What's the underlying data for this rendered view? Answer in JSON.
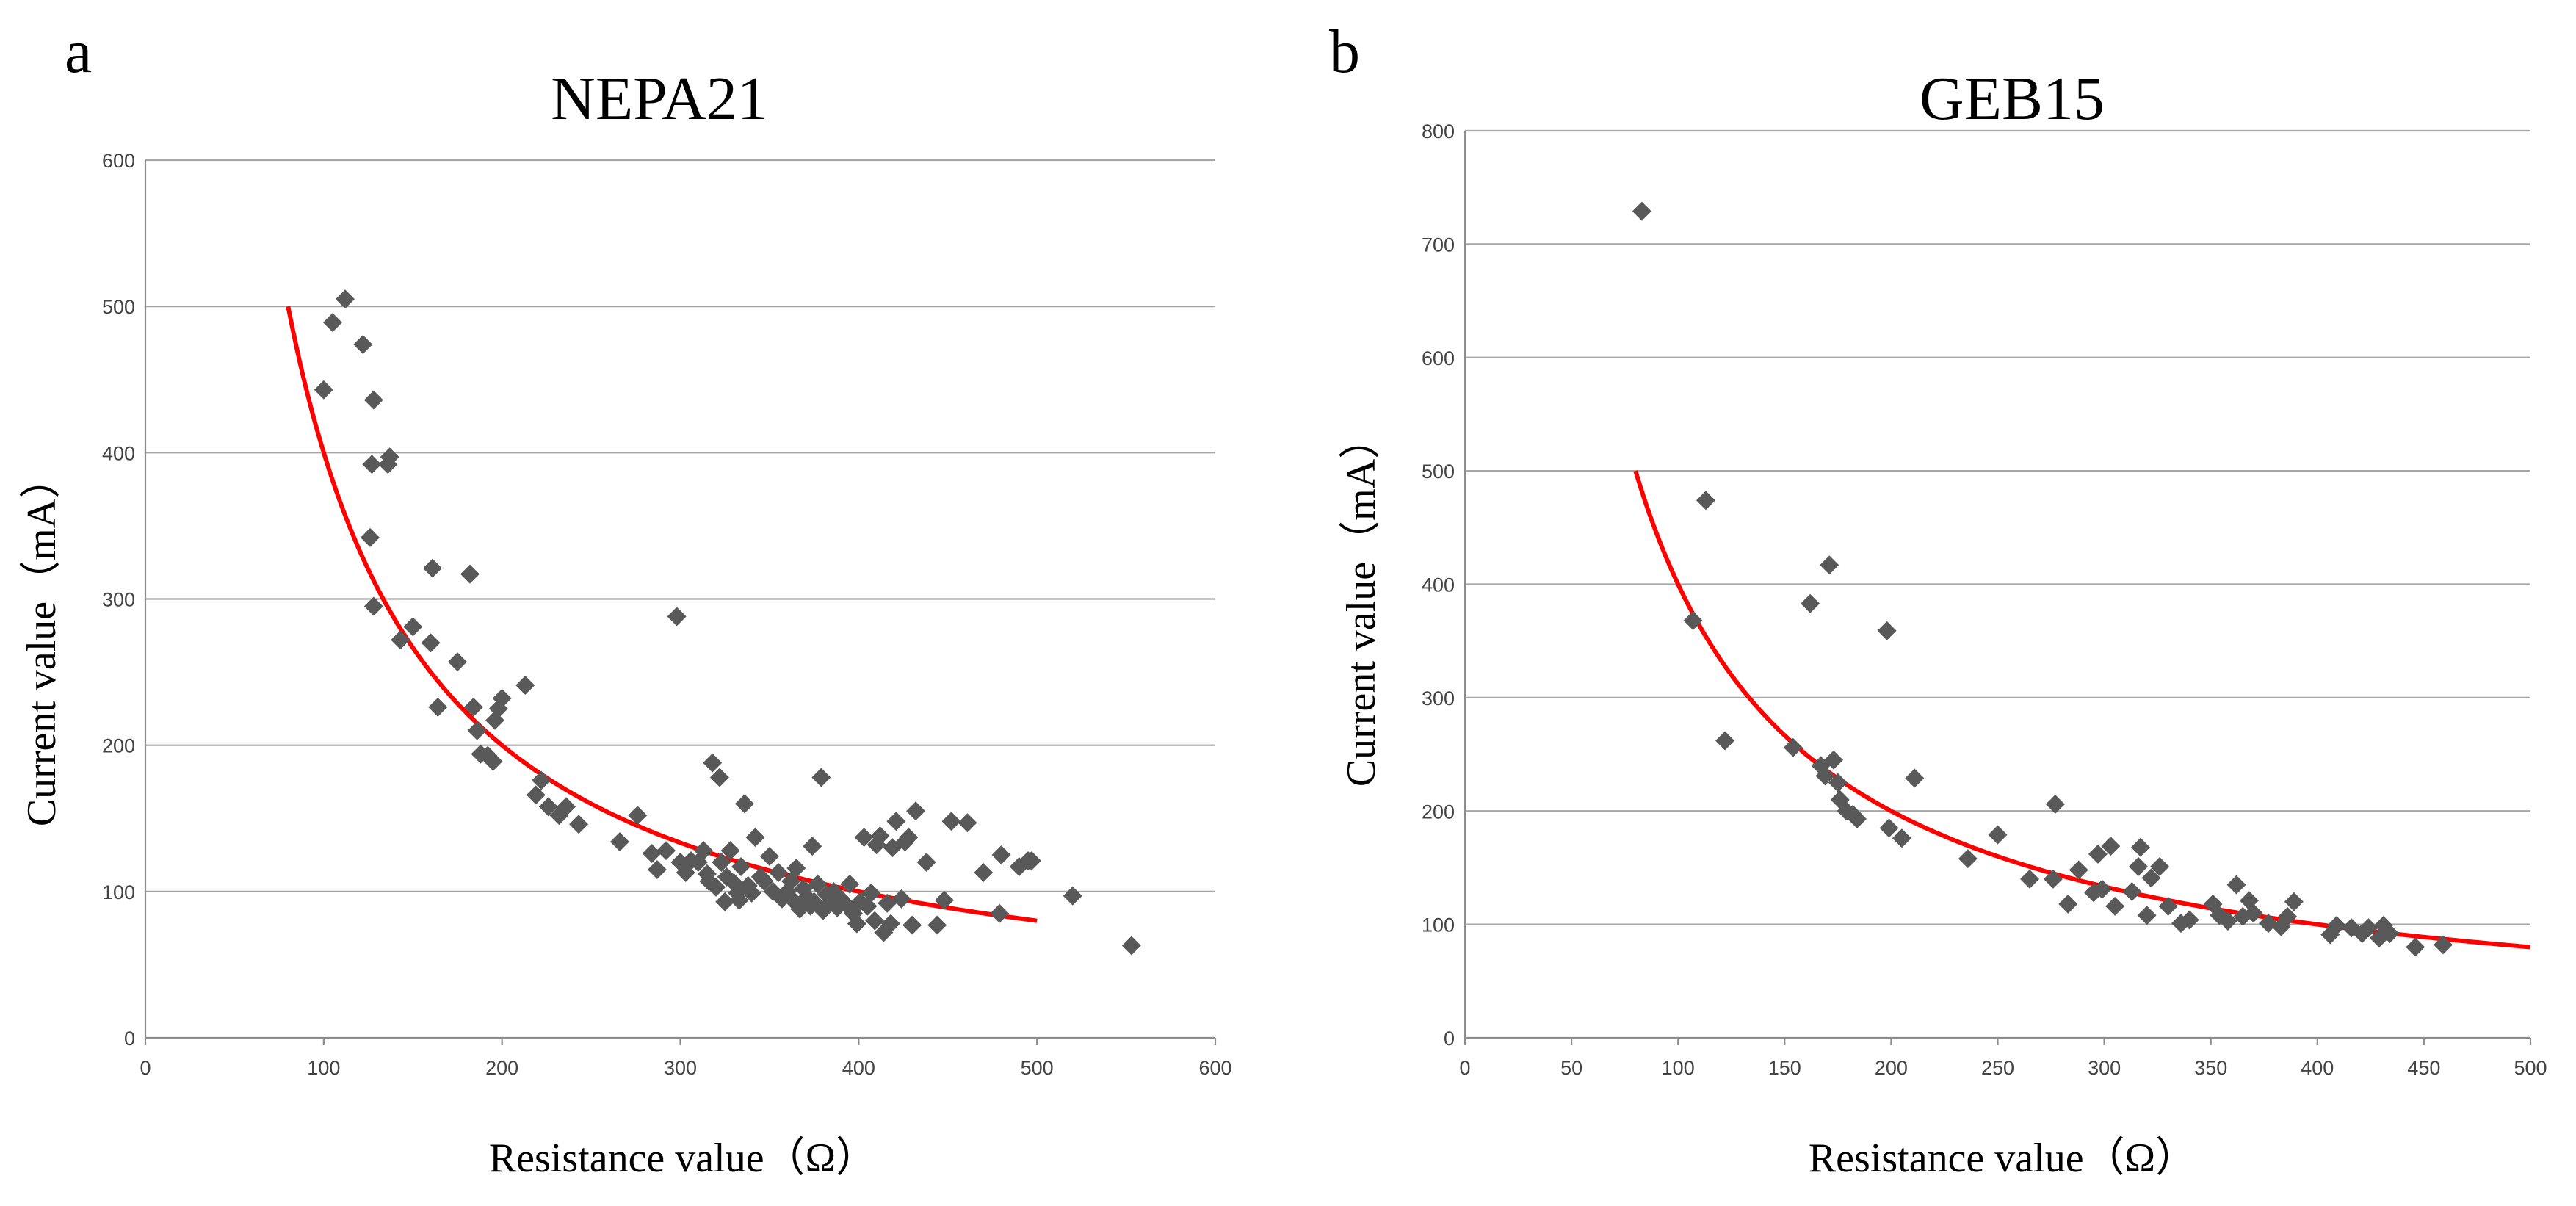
{
  "chart_data": [
    {
      "type": "scatter",
      "panel_label": "a",
      "title": "NEPA21",
      "xlabel": "Resistance value（Ω）",
      "ylabel": "Current value（mA）",
      "xlim": [
        0,
        600
      ],
      "ylim": [
        0,
        600
      ],
      "xticks": [
        0,
        100,
        200,
        300,
        400,
        500,
        600
      ],
      "yticks": [
        0,
        100,
        200,
        300,
        400,
        500,
        600
      ],
      "grid": "horizontal",
      "marker": "diamond",
      "marker_color": "#595959",
      "fit_line": {
        "type": "inverse",
        "formula": "y = k / x",
        "k": 40000,
        "x_range": [
          80,
          500
        ],
        "color": "#ff0000"
      },
      "points": [
        [
          100,
          443
        ],
        [
          105,
          489
        ],
        [
          112,
          505
        ],
        [
          122,
          474
        ],
        [
          128,
          436
        ],
        [
          127,
          392
        ],
        [
          126,
          342
        ],
        [
          128,
          295
        ],
        [
          136,
          392
        ],
        [
          137,
          397
        ],
        [
          143,
          272
        ],
        [
          150,
          281
        ],
        [
          160,
          270
        ],
        [
          161,
          321
        ],
        [
          164,
          226
        ],
        [
          175,
          257
        ],
        [
          182,
          317
        ],
        [
          184,
          226
        ],
        [
          186,
          210
        ],
        [
          188,
          194
        ],
        [
          192,
          193
        ],
        [
          195,
          189
        ],
        [
          196,
          217
        ],
        [
          198,
          225
        ],
        [
          200,
          232
        ],
        [
          213,
          241
        ],
        [
          219,
          166
        ],
        [
          222,
          176
        ],
        [
          226,
          158
        ],
        [
          232,
          152
        ],
        [
          236,
          158
        ],
        [
          243,
          146
        ],
        [
          266,
          134
        ],
        [
          276,
          152
        ],
        [
          284,
          126
        ],
        [
          287,
          115
        ],
        [
          292,
          128
        ],
        [
          298,
          288
        ],
        [
          300,
          120
        ],
        [
          303,
          113
        ],
        [
          306,
          121
        ],
        [
          310,
          120
        ],
        [
          313,
          128
        ],
        [
          315,
          112
        ],
        [
          316,
          107
        ],
        [
          318,
          188
        ],
        [
          320,
          103
        ],
        [
          322,
          178
        ],
        [
          323,
          120
        ],
        [
          325,
          93
        ],
        [
          326,
          110
        ],
        [
          328,
          128
        ],
        [
          330,
          106
        ],
        [
          332,
          99
        ],
        [
          333,
          94
        ],
        [
          334,
          117
        ],
        [
          336,
          160
        ],
        [
          338,
          104
        ],
        [
          340,
          99
        ],
        [
          342,
          137
        ],
        [
          345,
          110
        ],
        [
          347,
          107
        ],
        [
          350,
          124
        ],
        [
          352,
          100
        ],
        [
          355,
          113
        ],
        [
          357,
          95
        ],
        [
          360,
          100
        ],
        [
          362,
          107
        ],
        [
          364,
          93
        ],
        [
          365,
          116
        ],
        [
          367,
          88
        ],
        [
          369,
          102
        ],
        [
          371,
          96
        ],
        [
          373,
          90
        ],
        [
          374,
          131
        ],
        [
          375,
          93
        ],
        [
          377,
          105
        ],
        [
          379,
          178
        ],
        [
          380,
          87
        ],
        [
          382,
          98
        ],
        [
          384,
          92
        ],
        [
          386,
          100
        ],
        [
          388,
          89
        ],
        [
          390,
          95
        ],
        [
          393,
          91
        ],
        [
          395,
          105
        ],
        [
          397,
          85
        ],
        [
          399,
          78
        ],
        [
          401,
          93
        ],
        [
          403,
          137
        ],
        [
          405,
          90
        ],
        [
          407,
          99
        ],
        [
          409,
          80
        ],
        [
          410,
          132
        ],
        [
          412,
          138
        ],
        [
          414,
          72
        ],
        [
          416,
          92
        ],
        [
          418,
          78
        ],
        [
          419,
          130
        ],
        [
          421,
          148
        ],
        [
          424,
          95
        ],
        [
          426,
          134
        ],
        [
          428,
          137
        ],
        [
          430,
          77
        ],
        [
          432,
          155
        ],
        [
          438,
          120
        ],
        [
          444,
          77
        ],
        [
          448,
          94
        ],
        [
          452,
          148
        ],
        [
          461,
          147
        ],
        [
          470,
          113
        ],
        [
          479,
          85
        ],
        [
          480,
          125
        ],
        [
          490,
          117
        ],
        [
          495,
          121
        ],
        [
          497,
          121
        ],
        [
          520,
          97
        ],
        [
          553,
          63
        ]
      ]
    },
    {
      "type": "scatter",
      "panel_label": "b",
      "title": "GEB15",
      "xlabel": "Resistance value（Ω）",
      "ylabel": "Current value（mA）",
      "xlim": [
        0,
        500
      ],
      "ylim": [
        0,
        800
      ],
      "xticks": [
        0,
        50,
        100,
        150,
        200,
        250,
        300,
        350,
        400,
        450,
        500
      ],
      "yticks": [
        0,
        100,
        200,
        300,
        400,
        500,
        600,
        700,
        800
      ],
      "grid": "horizontal",
      "marker": "diamond",
      "marker_color": "#595959",
      "fit_line": {
        "type": "inverse",
        "formula": "y = k / x",
        "k": 40000,
        "x_range": [
          80,
          500
        ],
        "color": "#ff0000"
      },
      "points": [
        [
          83,
          729
        ],
        [
          107,
          368
        ],
        [
          113,
          474
        ],
        [
          122,
          262
        ],
        [
          154,
          256
        ],
        [
          162,
          383
        ],
        [
          167,
          240
        ],
        [
          169,
          231
        ],
        [
          171,
          417
        ],
        [
          173,
          245
        ],
        [
          175,
          225
        ],
        [
          176,
          210
        ],
        [
          179,
          200
        ],
        [
          182,
          197
        ],
        [
          184,
          193
        ],
        [
          198,
          359
        ],
        [
          199,
          185
        ],
        [
          205,
          176
        ],
        [
          211,
          229
        ],
        [
          236,
          158
        ],
        [
          250,
          179
        ],
        [
          265,
          140
        ],
        [
          276,
          140
        ],
        [
          277,
          206
        ],
        [
          283,
          118
        ],
        [
          288,
          148
        ],
        [
          295,
          128
        ],
        [
          297,
          162
        ],
        [
          299,
          131
        ],
        [
          303,
          169
        ],
        [
          305,
          116
        ],
        [
          313,
          129
        ],
        [
          316,
          151
        ],
        [
          317,
          168
        ],
        [
          320,
          108
        ],
        [
          322,
          141
        ],
        [
          326,
          151
        ],
        [
          330,
          116
        ],
        [
          336,
          101
        ],
        [
          340,
          104
        ],
        [
          351,
          118
        ],
        [
          354,
          108
        ],
        [
          358,
          103
        ],
        [
          362,
          135
        ],
        [
          365,
          107
        ],
        [
          368,
          121
        ],
        [
          370,
          110
        ],
        [
          377,
          101
        ],
        [
          383,
          98
        ],
        [
          386,
          107
        ],
        [
          389,
          120
        ],
        [
          406,
          91
        ],
        [
          409,
          99
        ],
        [
          416,
          97
        ],
        [
          421,
          92
        ],
        [
          424,
          97
        ],
        [
          429,
          88
        ],
        [
          431,
          99
        ],
        [
          434,
          92
        ],
        [
          446,
          80
        ],
        [
          459,
          82
        ]
      ]
    }
  ]
}
